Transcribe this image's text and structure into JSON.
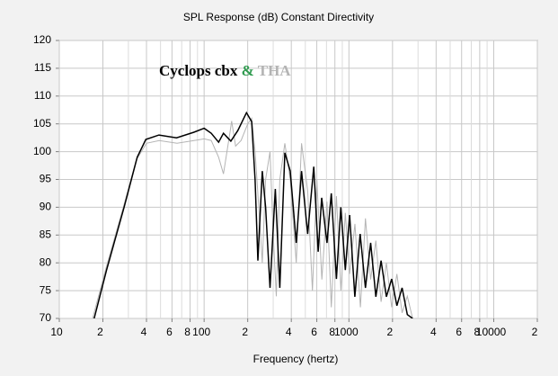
{
  "chart_data": {
    "type": "line",
    "title": "SPL Response (dB)   Constant Directivity",
    "x_label": "Frequency (hertz)",
    "legend_joiner": "&",
    "legend_joiner_color": "#2e9a4e",
    "xscale": "log",
    "xlim": [
      10,
      20000
    ],
    "ylim": [
      70,
      120
    ],
    "xticks": [
      10,
      {
        "value": 20,
        "label": "2"
      },
      {
        "value": 40,
        "label": "4"
      },
      {
        "value": 60,
        "label": "6"
      },
      {
        "value": 80,
        "label": "8"
      },
      100,
      {
        "value": 200,
        "label": "2"
      },
      {
        "value": 400,
        "label": "4"
      },
      {
        "value": 600,
        "label": "6"
      },
      {
        "value": 800,
        "label": "8"
      },
      1000,
      {
        "value": 2000,
        "label": "2"
      },
      {
        "value": 4000,
        "label": "4"
      },
      {
        "value": 6000,
        "label": "6"
      },
      {
        "value": 8000,
        "label": "8"
      },
      10000,
      {
        "value": 20000,
        "label": "2"
      }
    ],
    "x_minor_ticks": [
      30,
      50,
      70,
      90,
      300,
      500,
      700,
      900,
      3000,
      5000,
      7000,
      9000
    ],
    "yticks": [
      70,
      75,
      80,
      85,
      90,
      95,
      100,
      105,
      110,
      115,
      120
    ],
    "grid": true,
    "series": [
      {
        "name": "Cyclops cbx",
        "color": "#000000",
        "x": [
          17.4,
          21.2,
          28,
          34.5,
          39.6,
          48.8,
          64.5,
          85,
          100,
          112,
          126,
          136,
          153,
          171,
          196,
          213,
          225,
          235,
          252,
          266,
          285,
          310,
          333,
          361,
          393,
          433,
          471,
          519,
          572,
          613,
          648,
          705,
          755,
          820,
          879,
          944,
          1011,
          1099,
          1195,
          1300,
          1412,
          1535,
          1668,
          1813,
          1972,
          2143,
          2330,
          2531,
          2754
        ],
        "values": [
          70,
          78.7,
          90,
          99,
          102.2,
          103,
          102.5,
          103.5,
          104.2,
          103.3,
          101.7,
          103.3,
          101.9,
          103.8,
          107,
          105.4,
          94.9,
          80.4,
          96.5,
          90,
          75.5,
          93.3,
          75.5,
          99.8,
          96.5,
          83.6,
          96.5,
          85.2,
          97.3,
          82,
          91.7,
          83.6,
          92.5,
          77.1,
          90,
          78.7,
          88.6,
          73.9,
          85.2,
          75.5,
          83.6,
          73.9,
          80.4,
          73.9,
          77.1,
          72.3,
          75.5,
          70.7,
          70
        ]
      },
      {
        "name": "THA",
        "color": "#b4b4b4",
        "x": [
          17,
          21,
          28,
          34,
          40,
          49,
          65,
          85,
          100,
          112,
          126,
          136,
          150,
          155,
          165,
          180,
          200,
          213,
          225,
          240,
          252,
          266,
          285,
          300,
          315,
          333,
          361,
          393,
          433,
          471,
          519,
          560,
          600,
          650,
          705,
          755,
          820,
          880,
          944,
          1011,
          1100,
          1200,
          1300,
          1412,
          1535,
          1668,
          1813,
          1972,
          2143,
          2330,
          2531,
          2754
        ],
        "values": [
          70,
          79,
          90.5,
          98.5,
          101.5,
          102,
          101.5,
          102,
          102.3,
          102,
          99,
          96,
          103,
          105.5,
          101,
          102,
          105,
          106,
          100,
          89,
          80,
          95,
          100,
          85,
          74,
          95,
          101.5,
          95,
          80,
          101.5,
          93,
          75,
          95,
          77,
          91,
          72,
          92,
          75,
          89,
          78,
          87,
          72,
          88,
          77,
          84,
          73,
          80,
          72,
          78,
          71,
          74,
          70
        ]
      }
    ]
  }
}
